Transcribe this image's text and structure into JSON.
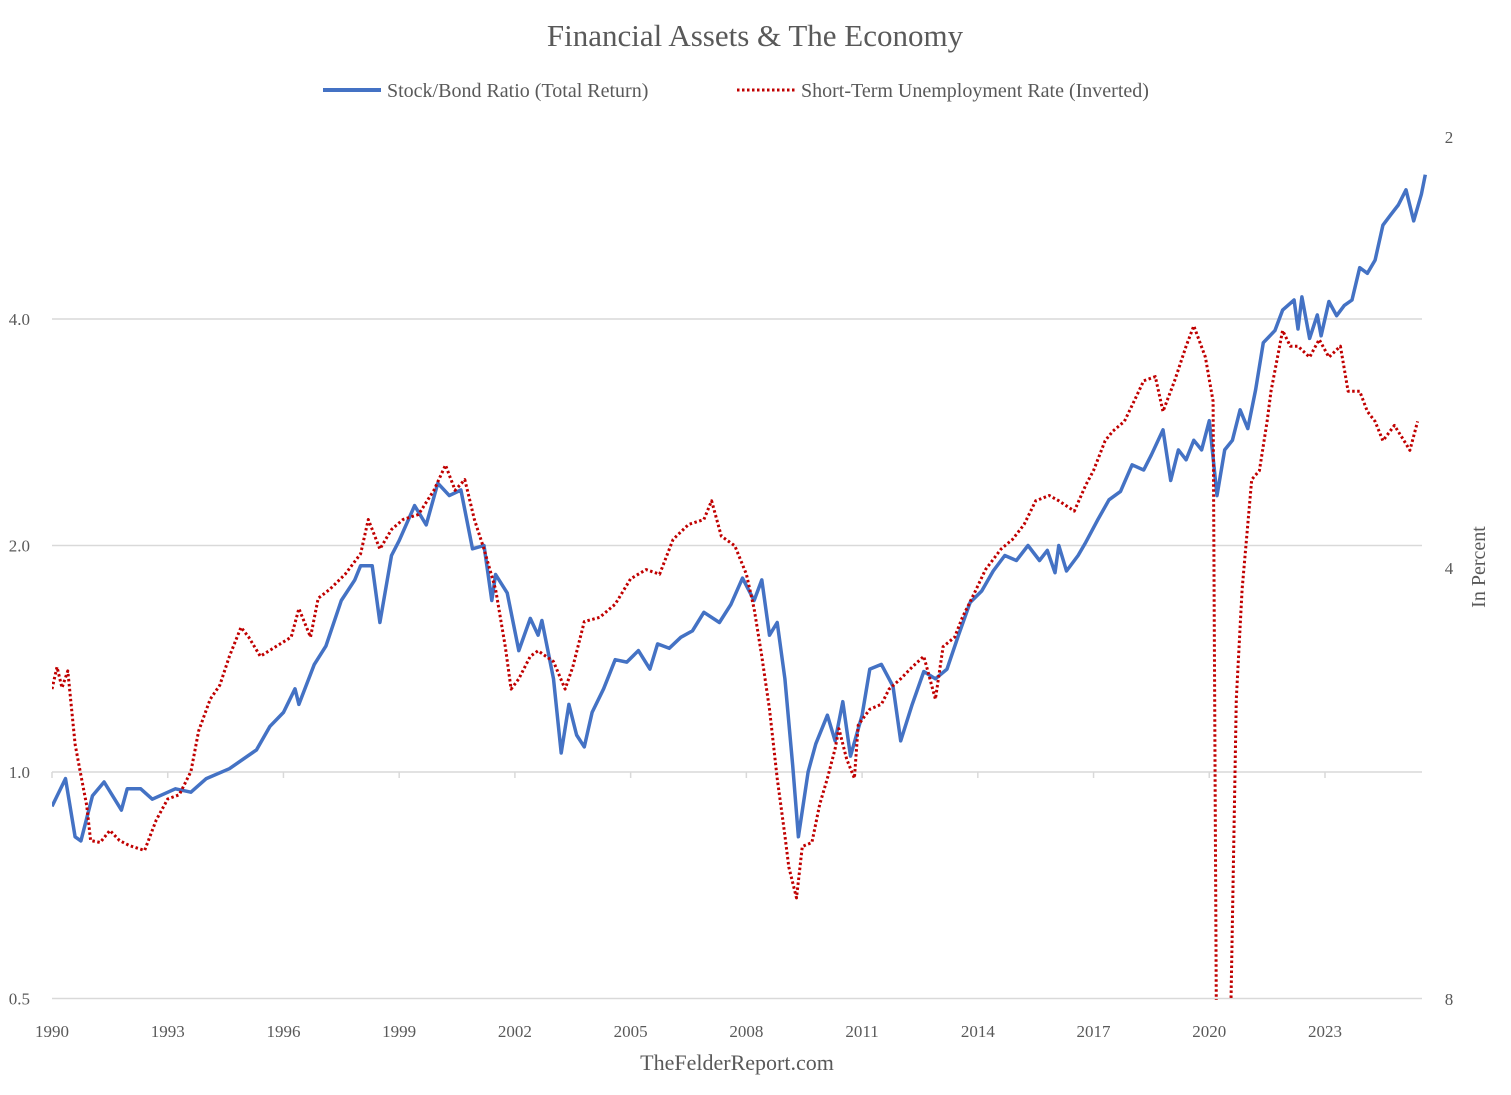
{
  "chart_data": {
    "type": "line",
    "title": "Financial Assets & The Economy",
    "footer": "TheFelderReport.com",
    "xlabel": "",
    "x_ticks": [
      "1990",
      "1993",
      "1996",
      "1999",
      "2002",
      "2005",
      "2008",
      "2011",
      "2014",
      "2017",
      "2020",
      "2023"
    ],
    "xlim": [
      1990,
      2025.6
    ],
    "left_axis": {
      "scale": "log2",
      "ylim": [
        0.5,
        7.0
      ],
      "ticks": [
        "0.5",
        "1.0",
        "2.0",
        "4.0"
      ],
      "tick_values": [
        0.5,
        1,
        2,
        4
      ],
      "grid": true
    },
    "right_axis": {
      "scale": "log2",
      "inverted": true,
      "ylim": [
        2,
        8
      ],
      "ticks": [
        "2",
        "4",
        "8"
      ],
      "tick_values": [
        2,
        4,
        8
      ],
      "label": "In Percent"
    },
    "legend": {
      "placement": "top-center"
    },
    "series": [
      {
        "name": "Stock/Bond Ratio (Total Return)",
        "axis": "left",
        "color": "#4472C4",
        "style": "solid",
        "x": [
          1990.0,
          1990.35,
          1990.6,
          1990.75,
          1991.05,
          1991.35,
          1991.8,
          1991.95,
          1992.3,
          1992.6,
          1993.2,
          1993.6,
          1994.0,
          1994.6,
          1995.3,
          1995.65,
          1996.0,
          1996.3,
          1996.4,
          1996.8,
          1997.1,
          1997.5,
          1997.85,
          1998.0,
          1998.3,
          1998.5,
          1998.8,
          1999.0,
          1999.4,
          1999.7,
          2000.0,
          2000.3,
          2000.6,
          2000.9,
          2001.2,
          2001.4,
          2001.5,
          2001.8,
          2002.1,
          2002.4,
          2002.6,
          2002.7,
          2003.0,
          2003.2,
          2003.4,
          2003.6,
          2003.8,
          2004.0,
          2004.3,
          2004.6,
          2004.9,
          2005.2,
          2005.5,
          2005.7,
          2006.0,
          2006.3,
          2006.6,
          2006.9,
          2007.3,
          2007.6,
          2007.9,
          2008.2,
          2008.4,
          2008.6,
          2008.8,
          2009.0,
          2009.2,
          2009.35,
          2009.6,
          2009.8,
          2010.1,
          2010.3,
          2010.5,
          2010.7,
          2011.0,
          2011.2,
          2011.5,
          2011.8,
          2012.0,
          2012.3,
          2012.6,
          2012.9,
          2013.2,
          2013.5,
          2013.8,
          2014.1,
          2014.4,
          2014.7,
          2015.0,
          2015.3,
          2015.6,
          2015.8,
          2016.0,
          2016.1,
          2016.3,
          2016.6,
          2016.8,
          2017.1,
          2017.4,
          2017.7,
          2018.0,
          2018.3,
          2018.5,
          2018.8,
          2019.0,
          2019.2,
          2019.4,
          2019.6,
          2019.8,
          2020.0,
          2020.2,
          2020.4,
          2020.6,
          2020.8,
          2021.0,
          2021.2,
          2021.4,
          2021.7,
          2021.9,
          2022.2,
          2022.3,
          2022.4,
          2022.6,
          2022.8,
          2022.9,
          2023.1,
          2023.3,
          2023.5,
          2023.7,
          2023.9,
          2024.1,
          2024.3,
          2024.5,
          2024.7,
          2024.9,
          2025.1,
          2025.3,
          2025.5,
          2025.6
        ],
        "values": [
          0.9,
          0.98,
          0.82,
          0.81,
          0.93,
          0.97,
          0.89,
          0.95,
          0.95,
          0.92,
          0.95,
          0.94,
          0.98,
          1.01,
          1.07,
          1.15,
          1.2,
          1.29,
          1.23,
          1.39,
          1.47,
          1.69,
          1.8,
          1.88,
          1.88,
          1.58,
          1.94,
          2.03,
          2.26,
          2.13,
          2.42,
          2.33,
          2.37,
          1.98,
          2.0,
          1.69,
          1.83,
          1.73,
          1.45,
          1.6,
          1.52,
          1.59,
          1.33,
          1.06,
          1.23,
          1.12,
          1.08,
          1.2,
          1.29,
          1.41,
          1.4,
          1.45,
          1.37,
          1.48,
          1.46,
          1.51,
          1.54,
          1.63,
          1.58,
          1.67,
          1.81,
          1.69,
          1.8,
          1.52,
          1.58,
          1.33,
          1.02,
          0.82,
          1.0,
          1.09,
          1.19,
          1.1,
          1.24,
          1.05,
          1.19,
          1.37,
          1.39,
          1.3,
          1.1,
          1.23,
          1.36,
          1.33,
          1.37,
          1.52,
          1.68,
          1.74,
          1.85,
          1.94,
          1.91,
          2.0,
          1.91,
          1.97,
          1.84,
          2.0,
          1.85,
          1.94,
          2.02,
          2.16,
          2.3,
          2.36,
          2.56,
          2.52,
          2.64,
          2.85,
          2.44,
          2.68,
          2.6,
          2.76,
          2.68,
          2.93,
          2.33,
          2.68,
          2.76,
          3.03,
          2.86,
          3.22,
          3.72,
          3.86,
          4.11,
          4.24,
          3.88,
          4.28,
          3.77,
          4.05,
          3.8,
          4.22,
          4.04,
          4.17,
          4.24,
          4.68,
          4.6,
          4.79,
          5.33,
          5.5,
          5.67,
          5.94,
          5.4,
          5.86,
          6.22
        ]
      },
      {
        "name": "Short-Term Unemployment Rate (Inverted)",
        "axis": "right",
        "color": "#C00000",
        "style": "dotted",
        "x": [
          1990.0,
          1990.13,
          1990.26,
          1990.41,
          1990.6,
          1990.73,
          1990.9,
          1991.0,
          1991.25,
          1991.5,
          1991.75,
          1992.0,
          1992.4,
          1992.7,
          1993.0,
          1993.3,
          1993.6,
          1993.8,
          1994.1,
          1994.35,
          1994.6,
          1994.9,
          1995.1,
          1995.4,
          1995.8,
          1996.2,
          1996.4,
          1996.7,
          1996.9,
          1997.2,
          1997.6,
          1998.0,
          1998.2,
          1998.5,
          1998.8,
          1999.1,
          1999.5,
          1999.9,
          2000.2,
          2000.45,
          2000.7,
          2000.95,
          2001.2,
          2001.5,
          2001.75,
          2001.9,
          2002.1,
          2002.4,
          2002.6,
          2003.0,
          2003.3,
          2003.5,
          2003.8,
          2004.2,
          2004.6,
          2005.0,
          2005.4,
          2005.75,
          2006.1,
          2006.5,
          2006.9,
          2007.1,
          2007.35,
          2007.7,
          2008.0,
          2008.2,
          2008.4,
          2008.6,
          2008.8,
          2009.0,
          2009.1,
          2009.3,
          2009.45,
          2009.7,
          2009.9,
          2010.1,
          2010.3,
          2010.4,
          2010.6,
          2010.8,
          2010.9,
          2011.2,
          2011.5,
          2011.7,
          2012.0,
          2012.3,
          2012.6,
          2012.9,
          2013.1,
          2013.4,
          2013.6,
          2013.9,
          2014.2,
          2014.6,
          2014.9,
          2015.2,
          2015.5,
          2015.85,
          2016.1,
          2016.5,
          2016.8,
          2017.0,
          2017.3,
          2017.5,
          2017.8,
          2018.05,
          2018.3,
          2018.6,
          2018.8,
          2019.1,
          2019.4,
          2019.6,
          2019.9,
          2020.1,
          2020.2,
          2020.5,
          2020.7,
          2020.85,
          2021.1,
          2021.3,
          2021.5,
          2021.6,
          2021.9,
          2022.1,
          2022.3,
          2022.6,
          2022.85,
          2023.1,
          2023.4,
          2023.6,
          2023.9,
          2024.1,
          2024.3,
          2024.5,
          2024.8,
          2025.05,
          2025.2,
          2025.4
        ],
        "values": [
          4.86,
          4.69,
          4.85,
          4.72,
          5.31,
          5.55,
          5.86,
          6.2,
          6.22,
          6.1,
          6.2,
          6.25,
          6.3,
          6.0,
          5.8,
          5.76,
          5.55,
          5.2,
          4.94,
          4.83,
          4.61,
          4.4,
          4.47,
          4.61,
          4.54,
          4.47,
          4.27,
          4.47,
          4.2,
          4.14,
          4.04,
          3.91,
          3.7,
          3.88,
          3.76,
          3.7,
          3.67,
          3.53,
          3.39,
          3.53,
          3.47,
          3.7,
          3.88,
          4.14,
          4.54,
          4.86,
          4.78,
          4.61,
          4.57,
          4.65,
          4.86,
          4.69,
          4.36,
          4.33,
          4.24,
          4.07,
          4.01,
          4.04,
          3.82,
          3.73,
          3.7,
          3.59,
          3.8,
          3.86,
          4.04,
          4.27,
          4.61,
          5.02,
          5.61,
          6.15,
          6.47,
          6.8,
          6.26,
          6.22,
          5.85,
          5.61,
          5.35,
          5.18,
          5.44,
          5.61,
          5.15,
          5.02,
          4.98,
          4.86,
          4.78,
          4.69,
          4.61,
          4.94,
          4.54,
          4.47,
          4.33,
          4.17,
          4.01,
          3.88,
          3.82,
          3.73,
          3.59,
          3.56,
          3.59,
          3.65,
          3.5,
          3.42,
          3.26,
          3.21,
          3.16,
          3.06,
          2.96,
          2.94,
          3.11,
          2.96,
          2.8,
          2.71,
          2.85,
          3.06,
          10.0,
          10.0,
          4.94,
          4.14,
          3.47,
          3.42,
          3.16,
          3.01,
          2.73,
          2.8,
          2.8,
          2.85,
          2.77,
          2.85,
          2.8,
          3.01,
          3.01,
          3.11,
          3.16,
          3.26,
          3.18,
          3.26,
          3.31,
          3.16
        ]
      }
    ]
  }
}
